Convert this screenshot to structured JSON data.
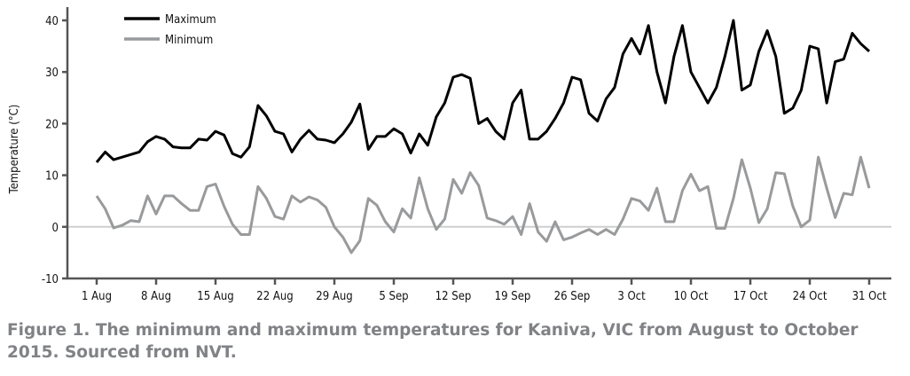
{
  "chart_data": {
    "type": "line",
    "title": "",
    "xlabel": "",
    "ylabel": "Temperature (°C)",
    "ylim": [
      -10,
      40
    ],
    "yticks": [
      -10,
      0,
      10,
      20,
      30,
      40
    ],
    "x_start": "1 Aug 2015",
    "x_end": "31 Oct 2015",
    "xtick_labels": [
      "1 Aug",
      "8 Aug",
      "15 Aug",
      "22 Aug",
      "29 Aug",
      "5 Sep",
      "12 Sep",
      "19 Sep",
      "26 Sep",
      "3 Oct",
      "10 Oct",
      "17 Oct",
      "24 Oct",
      "31 Oct"
    ],
    "legend_position": "top-left",
    "grid": false,
    "reference_line": 0,
    "series": [
      {
        "name": "Maximum",
        "color": "#000000",
        "values": [
          12.5,
          14.5,
          13,
          13.5,
          14,
          14.5,
          16.5,
          17.5,
          17,
          15.5,
          15.3,
          15.3,
          17,
          16.8,
          18.5,
          17.8,
          14.2,
          13.5,
          15.5,
          23.5,
          21.5,
          18.5,
          18,
          14.5,
          17,
          18.7,
          17,
          16.8,
          16.3,
          18,
          20.3,
          23.8,
          15,
          17.5,
          17.5,
          19,
          18,
          14.3,
          18,
          15.8,
          21.3,
          24,
          29,
          29.5,
          28.8,
          20,
          21,
          18.5,
          17,
          24,
          26.5,
          17,
          17,
          18.5,
          21,
          24,
          29,
          28.5,
          22,
          20.5,
          24.8,
          27,
          33.5,
          36.5,
          33.5,
          39,
          30,
          24,
          33,
          39,
          30,
          27,
          24,
          27,
          33,
          40,
          26.5,
          27.5,
          34,
          38,
          33,
          22,
          23,
          26.5,
          35,
          34.5,
          24,
          32,
          32.5,
          37.5,
          35.5,
          34
        ]
      },
      {
        "name": "Minimum",
        "color": "#999a9c",
        "values": [
          6,
          3.5,
          -0.2,
          0.3,
          1.2,
          1,
          6,
          2.5,
          6,
          6,
          4.5,
          3.2,
          3.2,
          7.8,
          8.3,
          4,
          0.5,
          -1.5,
          -1.5,
          7.8,
          5.5,
          2,
          1.5,
          6,
          4.8,
          5.8,
          5.2,
          3.8,
          0,
          -2,
          -5,
          -2.7,
          5.5,
          4.2,
          1,
          -1,
          3.5,
          1.7,
          9.5,
          3.5,
          -0.5,
          1.5,
          9.2,
          6.5,
          10.5,
          8,
          1.7,
          1.2,
          0.5,
          2,
          -1.5,
          4.5,
          -1,
          -2.8,
          1,
          -2.5,
          -2,
          -1.2,
          -0.5,
          -1.5,
          -0.5,
          -1.5,
          1.5,
          5.5,
          5,
          3.2,
          7.5,
          1,
          1,
          7,
          10.2,
          7,
          7.8,
          -0.3,
          -0.3,
          5.5,
          13,
          7.5,
          0.8,
          3.5,
          10.5,
          10.3,
          4,
          0,
          1.3,
          13.5,
          7.5,
          1.8,
          6.5,
          6.2,
          13.5,
          7.5
        ]
      }
    ]
  },
  "caption": "Figure 1. The minimum and maximum temperatures for Kaniva, VIC from August to October 2015. Sourced from NVT."
}
